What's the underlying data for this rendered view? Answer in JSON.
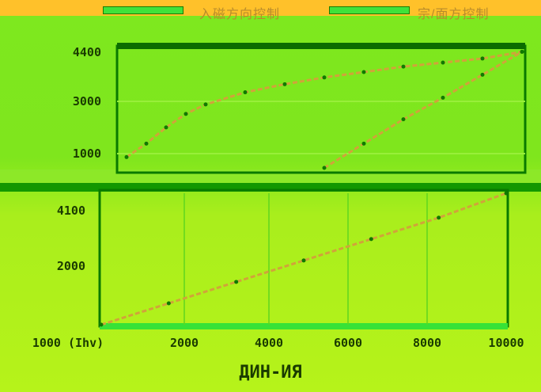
{
  "legend": [
    {
      "label": "入磁方向控制",
      "color": "#3fe23a"
    },
    {
      "label": "宗/面方控制",
      "color": "#3fe23a"
    }
  ],
  "colors": {
    "background_top": "#7ee81f",
    "background_bottom": "#b6f31a",
    "header": "#ffc12a",
    "series_line": "#d1a33a",
    "axis": "#0a7a00"
  },
  "chart_data": [
    {
      "type": "line",
      "title": "",
      "xlabel": "",
      "ylabel": "",
      "y_ticks": [
        "4400",
        "3000",
        "1000"
      ],
      "series": [
        {
          "name": "",
          "x": [
            0,
            0.5,
            1,
            1.5,
            2,
            3,
            4,
            5,
            6,
            7,
            8,
            9,
            10
          ],
          "y": [
            400,
            900,
            1500,
            2000,
            2350,
            2800,
            3100,
            3350,
            3550,
            3750,
            3900,
            4050,
            4300
          ]
        },
        {
          "name": "",
          "x": [
            5,
            6,
            7,
            8,
            9,
            10
          ],
          "y": [
            0,
            900,
            1800,
            2600,
            3450,
            4300
          ]
        }
      ]
    },
    {
      "type": "line",
      "title": "",
      "xlabel": "ДИН-ИЯ",
      "ylabel": "",
      "x_ticks": [
        "1000 (Ihv)",
        "2000",
        "4000",
        "6000",
        "8000",
        "10000"
      ],
      "y_ticks": [
        "4100",
        "2000"
      ],
      "series": [
        {
          "name": "",
          "x": [
            0,
            1000,
            2000,
            3000,
            4000,
            5000,
            6000
          ],
          "y": [
            0,
            700,
            1400,
            2100,
            2800,
            3500,
            4300
          ]
        }
      ]
    }
  ]
}
